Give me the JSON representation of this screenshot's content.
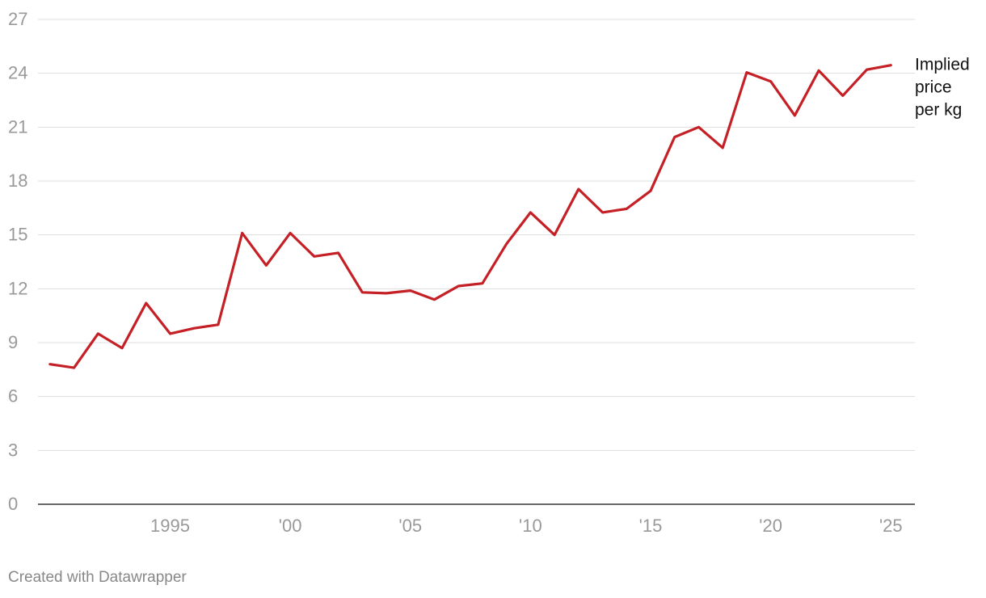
{
  "chart_data": {
    "type": "line",
    "x": [
      1990,
      1991,
      1992,
      1993,
      1994,
      1995,
      1996,
      1997,
      1998,
      1999,
      2000,
      2001,
      2002,
      2003,
      2004,
      2005,
      2006,
      2007,
      2008,
      2009,
      2010,
      2011,
      2012,
      2013,
      2014,
      2015,
      2016,
      2017,
      2018,
      2019,
      2020,
      2021,
      2022,
      2023,
      2024,
      2025
    ],
    "series": [
      {
        "name": "Implied price per kg",
        "color": "#c42026",
        "values": [
          7.8,
          7.6,
          9.5,
          8.7,
          11.2,
          9.5,
          9.8,
          10.0,
          15.1,
          13.3,
          15.1,
          13.8,
          14.0,
          11.8,
          11.75,
          11.9,
          11.4,
          12.15,
          12.3,
          14.5,
          16.25,
          15.0,
          17.55,
          16.25,
          16.45,
          17.45,
          20.45,
          21.0,
          19.85,
          24.05,
          23.55,
          21.65,
          24.15,
          22.75,
          24.2,
          24.45
        ]
      }
    ],
    "series_label_lines": [
      "Implied",
      "price",
      "per kg"
    ],
    "x_ticks": [
      {
        "value": 1995,
        "label": "1995"
      },
      {
        "value": 2000,
        "label": "'00"
      },
      {
        "value": 2005,
        "label": "'05"
      },
      {
        "value": 2010,
        "label": "'10"
      },
      {
        "value": 2015,
        "label": "'15"
      },
      {
        "value": 2020,
        "label": "'20"
      },
      {
        "value": 2025,
        "label": "'25"
      }
    ],
    "y_ticks": [
      0,
      3,
      6,
      9,
      12,
      15,
      18,
      21,
      24,
      27
    ],
    "ylim": [
      0,
      27
    ],
    "xlim": [
      1989.5,
      2026
    ],
    "grid": true,
    "xlabel": "",
    "ylabel": "",
    "title": ""
  },
  "credit": "Created with Datawrapper",
  "colors": {
    "line": "#c42026",
    "grid": "#dddddd",
    "tick_text": "#999999",
    "axis": "#333333"
  }
}
